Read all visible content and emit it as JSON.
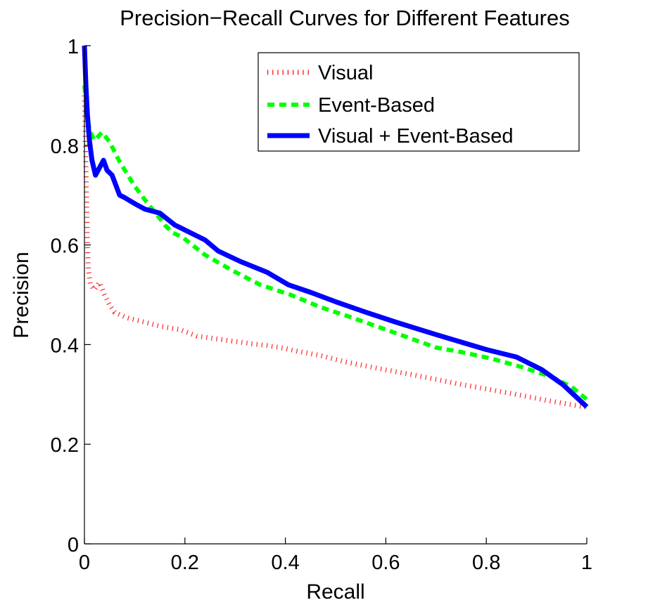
{
  "chart_data": {
    "type": "line",
    "title": "Precision−Recall Curves for Different Features",
    "xlabel": "Recall",
    "ylabel": "Precision",
    "xlim": [
      0,
      1
    ],
    "ylim": [
      0,
      1
    ],
    "xticks": [
      0,
      0.2,
      0.4,
      0.6,
      0.8,
      1
    ],
    "xtick_labels": [
      "0",
      "0.2",
      "0.4",
      "0.6",
      "0.8",
      "1"
    ],
    "yticks": [
      0,
      0.2,
      0.4,
      0.6,
      0.8,
      1
    ],
    "ytick_labels": [
      "0",
      "0.2",
      "0.4",
      "0.6",
      "0.8",
      "1"
    ],
    "grid": false,
    "legend_position": "top-right",
    "series": [
      {
        "name": "Visual",
        "color": "#ff0000",
        "style": "dotted",
        "x": [
          0,
          0.002,
          0.004,
          0.006,
          0.008,
          0.012,
          0.02,
          0.03,
          0.04,
          0.05,
          0.06,
          0.084,
          0.12,
          0.154,
          0.19,
          0.224,
          0.26,
          0.294,
          0.33,
          0.364,
          0.4,
          0.427,
          0.47,
          0.52,
          0.59,
          0.65,
          0.7,
          0.75,
          0.81,
          0.87,
          0.92,
          0.96,
          1.0
        ],
        "y": [
          0.9,
          0.8,
          0.7,
          0.6,
          0.55,
          0.52,
          0.51,
          0.525,
          0.5,
          0.48,
          0.465,
          0.454,
          0.445,
          0.436,
          0.43,
          0.417,
          0.412,
          0.407,
          0.402,
          0.398,
          0.392,
          0.386,
          0.378,
          0.365,
          0.351,
          0.34,
          0.33,
          0.32,
          0.309,
          0.298,
          0.288,
          0.281,
          0.274
        ]
      },
      {
        "name": "Event-Based",
        "color": "#00ff00",
        "style": "dashed",
        "x": [
          0,
          0.005,
          0.01,
          0.02,
          0.035,
          0.05,
          0.07,
          0.1,
          0.126,
          0.145,
          0.16,
          0.175,
          0.196,
          0.24,
          0.294,
          0.35,
          0.41,
          0.47,
          0.53,
          0.6,
          0.7,
          0.75,
          0.81,
          0.87,
          0.93,
          0.97,
          1.0
        ],
        "y": [
          0.92,
          0.87,
          0.83,
          0.81,
          0.826,
          0.807,
          0.767,
          0.718,
          0.683,
          0.66,
          0.64,
          0.625,
          0.615,
          0.58,
          0.549,
          0.52,
          0.5,
          0.475,
          0.455,
          0.43,
          0.394,
          0.385,
          0.372,
          0.355,
          0.335,
          0.315,
          0.29
        ]
      },
      {
        "name": "Visual + Event-Based",
        "color": "#0000ff",
        "style": "solid",
        "x": [
          0,
          0.003,
          0.006,
          0.01,
          0.015,
          0.022,
          0.03,
          0.038,
          0.045,
          0.055,
          0.07,
          0.08,
          0.1,
          0.12,
          0.15,
          0.18,
          0.21,
          0.24,
          0.266,
          0.31,
          0.364,
          0.406,
          0.45,
          0.5,
          0.56,
          0.62,
          0.7,
          0.75,
          0.8,
          0.86,
          0.91,
          0.952,
          1.0
        ],
        "y": [
          1.0,
          0.92,
          0.86,
          0.81,
          0.77,
          0.74,
          0.755,
          0.77,
          0.75,
          0.74,
          0.7,
          0.695,
          0.683,
          0.672,
          0.664,
          0.64,
          0.625,
          0.61,
          0.588,
          0.567,
          0.545,
          0.52,
          0.505,
          0.486,
          0.465,
          0.445,
          0.42,
          0.405,
          0.39,
          0.375,
          0.35,
          0.32,
          0.275
        ]
      }
    ]
  }
}
